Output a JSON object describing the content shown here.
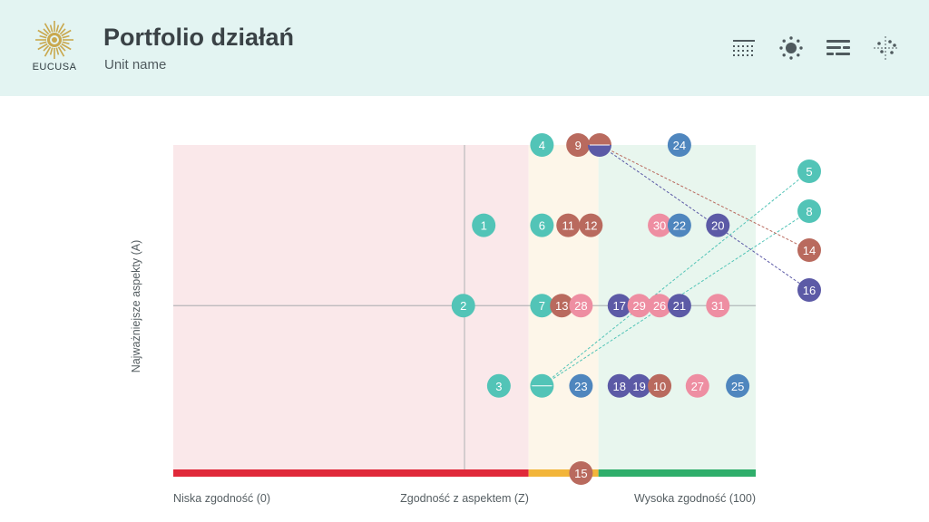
{
  "header": {
    "logo_text": "EUCUSA",
    "title": "Portfolio działań",
    "subtitle": "Unit name",
    "tools": [
      {
        "icon": "grid-dots-icon"
      },
      {
        "icon": "settings-dots-icon"
      },
      {
        "icon": "filter-bars-icon"
      },
      {
        "icon": "scatter-plot-icon"
      }
    ]
  },
  "colors": {
    "header_bg": "#e3f4f2",
    "zone_low": "#fae8ea",
    "zone_mid": "#fdf6e9",
    "zone_high": "#e8f6ee",
    "bar_low": "#e0293a",
    "bar_mid": "#f2b53a",
    "bar_high": "#2fae6b"
  },
  "chart_data": {
    "type": "scatter",
    "xlabel_left": "Niska zgodność (0)",
    "xlabel_mid": "Zgodność z aspektem (Z)",
    "xlabel_right": "Wysoka zgodność (100)",
    "ylabel": "Najważniejsze aspekty (A)",
    "xlim": [
      0,
      100
    ],
    "zones": [
      {
        "name": "low",
        "from": 0,
        "to": 61
      },
      {
        "name": "mid",
        "from": 61,
        "to": 73
      },
      {
        "name": "high",
        "from": 73,
        "to": 100
      }
    ],
    "rows": 5,
    "points": [
      {
        "label": "4",
        "x": 63.3,
        "row": 0,
        "color": "#52c4b7"
      },
      {
        "label": "9",
        "x": 69.5,
        "row": 0,
        "color": "#b96a5e"
      },
      {
        "label": "",
        "x": 73.2,
        "row": 0,
        "color": "#b96a5e",
        "half_color": "#5c5aa6"
      },
      {
        "label": "24",
        "x": 86.9,
        "row": 0,
        "color": "#4f86be"
      },
      {
        "label": "1",
        "x": 53.3,
        "row": 1,
        "color": "#52c4b7"
      },
      {
        "label": "6",
        "x": 63.3,
        "row": 1,
        "color": "#52c4b7"
      },
      {
        "label": "11",
        "x": 67.8,
        "row": 1,
        "color": "#b96a5e"
      },
      {
        "label": "12",
        "x": 71.7,
        "row": 1,
        "color": "#b96a5e"
      },
      {
        "label": "30",
        "x": 83.5,
        "row": 1,
        "color": "#ee8ea2"
      },
      {
        "label": "22",
        "x": 86.9,
        "row": 1,
        "color": "#4f86be"
      },
      {
        "label": "20",
        "x": 93.5,
        "row": 1,
        "color": "#5c5aa6"
      },
      {
        "label": "2",
        "x": 49.8,
        "row": 2,
        "color": "#52c4b7"
      },
      {
        "label": "7",
        "x": 63.3,
        "row": 2,
        "color": "#52c4b7"
      },
      {
        "label": "13",
        "x": 66.7,
        "row": 2,
        "color": "#b96a5e"
      },
      {
        "label": "28",
        "x": 70.0,
        "row": 2,
        "color": "#ee8ea2"
      },
      {
        "label": "17",
        "x": 76.6,
        "row": 2,
        "color": "#5c5aa6"
      },
      {
        "label": "29",
        "x": 80.0,
        "row": 2,
        "color": "#ee8ea2"
      },
      {
        "label": "26",
        "x": 83.5,
        "row": 2,
        "color": "#ee8ea2"
      },
      {
        "label": "21",
        "x": 86.9,
        "row": 2,
        "color": "#5c5aa6"
      },
      {
        "label": "31",
        "x": 93.5,
        "row": 2,
        "color": "#ee8ea2"
      },
      {
        "label": "3",
        "x": 55.9,
        "row": 3,
        "color": "#52c4b7"
      },
      {
        "label": "",
        "x": 63.3,
        "row": 3,
        "color": "#52c4b7",
        "half_color": "#52c4b7"
      },
      {
        "label": "23",
        "x": 70.0,
        "row": 3,
        "color": "#4f86be"
      },
      {
        "label": "18",
        "x": 76.6,
        "row": 3,
        "color": "#5c5aa6"
      },
      {
        "label": "19",
        "x": 80.0,
        "row": 3,
        "color": "#5c5aa6"
      },
      {
        "label": "10",
        "x": 83.5,
        "row": 3,
        "color": "#b96a5e"
      },
      {
        "label": "27",
        "x": 90.0,
        "row": 3,
        "color": "#ee8ea2"
      },
      {
        "label": "25",
        "x": 96.9,
        "row": 3,
        "color": "#4f86be"
      },
      {
        "label": "15",
        "x": 70.0,
        "row": 4,
        "color": "#b96a5e"
      }
    ],
    "outliers": [
      {
        "label": "5",
        "color": "#52c4b7",
        "link_from_row": 3,
        "link_from_x": 63.3
      },
      {
        "label": "8",
        "color": "#52c4b7",
        "link_from_row": 3,
        "link_from_x": 63.3
      },
      {
        "label": "14",
        "color": "#b96a5e",
        "link_from_row": 0,
        "link_from_x": 73.2
      },
      {
        "label": "16",
        "color": "#5c5aa6",
        "link_from_row": 0,
        "link_from_x": 73.2
      }
    ]
  }
}
